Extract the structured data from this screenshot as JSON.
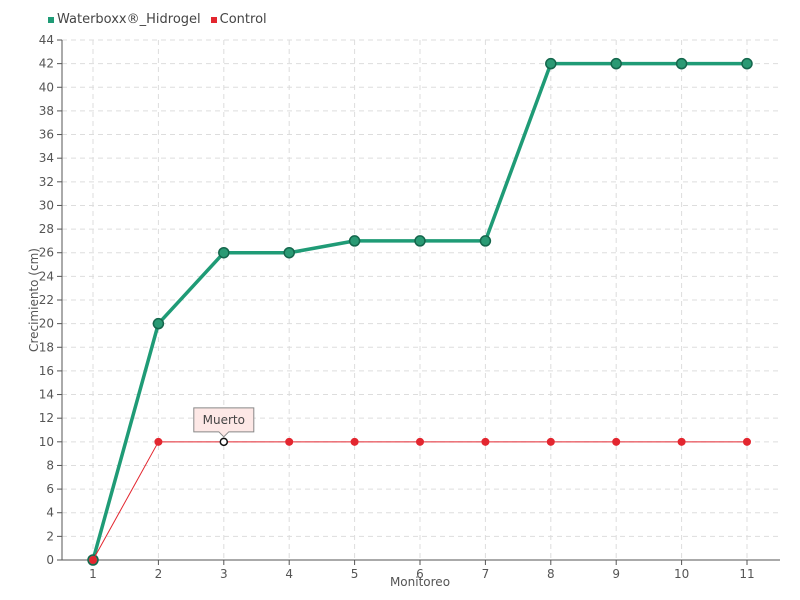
{
  "chart_data": {
    "type": "line",
    "xlabel": "Monitoreo",
    "ylabel": "Crecimiento (cm)",
    "categories": [
      "1",
      "2",
      "3",
      "4",
      "5",
      "6",
      "7",
      "8",
      "9",
      "10",
      "11"
    ],
    "ylim": [
      0,
      44
    ],
    "yticks": [
      0,
      2,
      4,
      6,
      8,
      10,
      12,
      14,
      16,
      18,
      20,
      22,
      24,
      26,
      28,
      30,
      32,
      34,
      36,
      38,
      40,
      42,
      44
    ],
    "grid": true,
    "legend_position": "top-left",
    "series": [
      {
        "name": "Waterboxx®_Hidrogel",
        "color": "#1f9b76",
        "values": [
          0,
          20,
          26,
          26,
          27,
          27,
          27,
          42,
          42,
          42,
          42
        ]
      },
      {
        "name": "Control",
        "color": "#e3262f",
        "values": [
          0,
          10,
          10,
          10,
          10,
          10,
          10,
          10,
          10,
          10,
          10
        ]
      }
    ],
    "annotations": [
      {
        "text": "Muerto",
        "series": "Control",
        "category": "3",
        "value": 10
      }
    ]
  }
}
